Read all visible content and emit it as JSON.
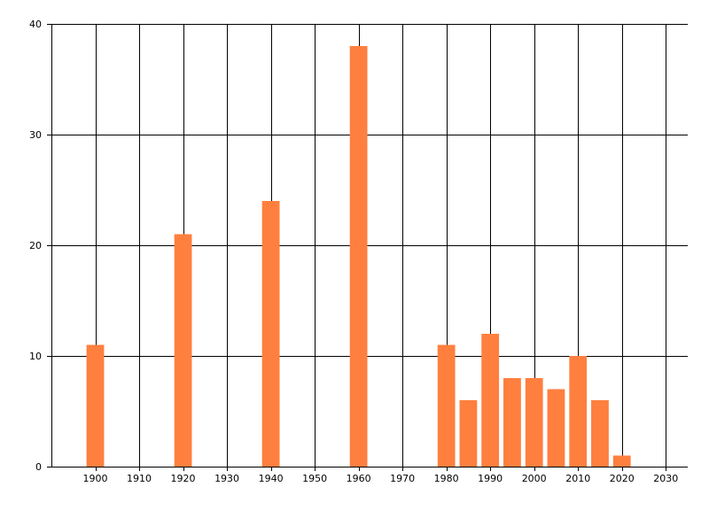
{
  "chart_data": {
    "type": "bar",
    "title": "",
    "xlabel": "",
    "ylabel": "",
    "x": [
      1900,
      1920,
      1940,
      1960,
      1980,
      1985,
      1990,
      1995,
      2000,
      2005,
      2010,
      2015,
      2020
    ],
    "values": [
      11,
      21,
      24,
      38,
      11,
      6,
      12,
      8,
      8,
      7,
      10,
      6,
      1
    ],
    "xlim": [
      1890,
      2035
    ],
    "ylim": [
      0,
      40
    ],
    "x_ticks": [
      1900,
      1910,
      1920,
      1930,
      1940,
      1950,
      1960,
      1970,
      1980,
      1990,
      2000,
      2010,
      2020,
      2030
    ],
    "y_ticks": [
      0,
      10,
      20,
      30,
      40
    ],
    "bar_width_years": 4,
    "grid": true,
    "bar_color": "#ff7f3f",
    "grid_color": "#000000"
  }
}
